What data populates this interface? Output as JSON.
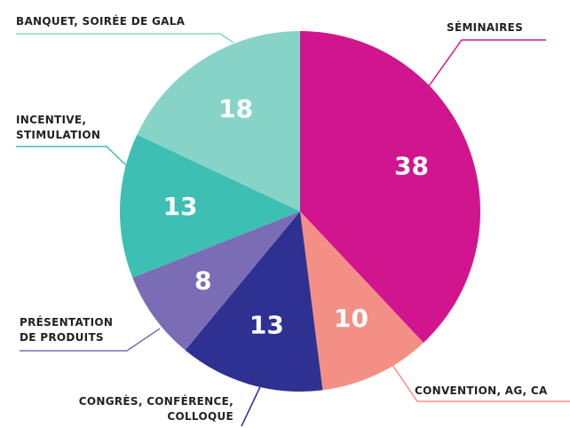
{
  "chart_data": {
    "type": "pie",
    "categories": [
      "SÉMINAIRES",
      "CONVENTION, AG, CA",
      "CONGRÈS, CONFÉRENCE, COLLOQUE",
      "PRÉSENTATION DE PRODUITS",
      "INCENTIVE, STIMULATION",
      "BANQUET, SOIRÉE DE GALA"
    ],
    "values": [
      38,
      10,
      13,
      8,
      13,
      18
    ],
    "colors": [
      "#d0158f",
      "#f48f86",
      "#2e3192",
      "#7a6db5",
      "#3dbfb3",
      "#88d3c7"
    ]
  }
}
